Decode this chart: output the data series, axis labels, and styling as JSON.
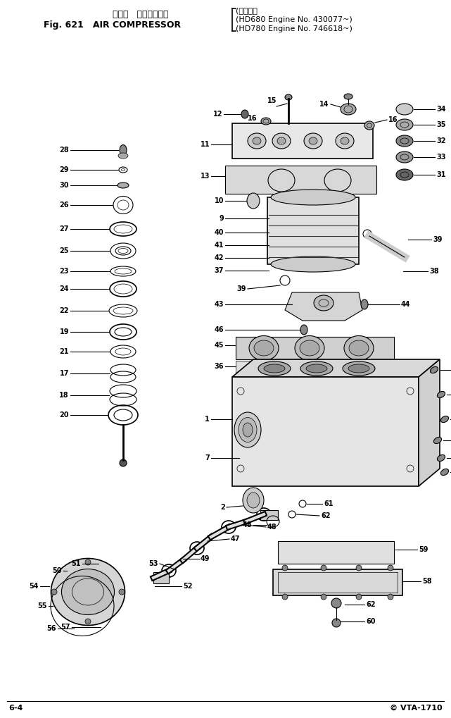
{
  "title_jp": "エアー   コンプレッサ",
  "title_en": "Fig. 621   AIR COMPRESSOR",
  "app_line1": "(適用号機",
  "app_line2": "(HD680 Engine No. 430077~)",
  "app_line3": "(HD780 Engine No. 746618~)",
  "footer_left": "6-4",
  "footer_right": "© VTA-1710",
  "bg_color": "#ffffff",
  "fg_color": "#000000",
  "fig_width": 6.41,
  "fig_height": 10.19,
  "dpi": 100
}
